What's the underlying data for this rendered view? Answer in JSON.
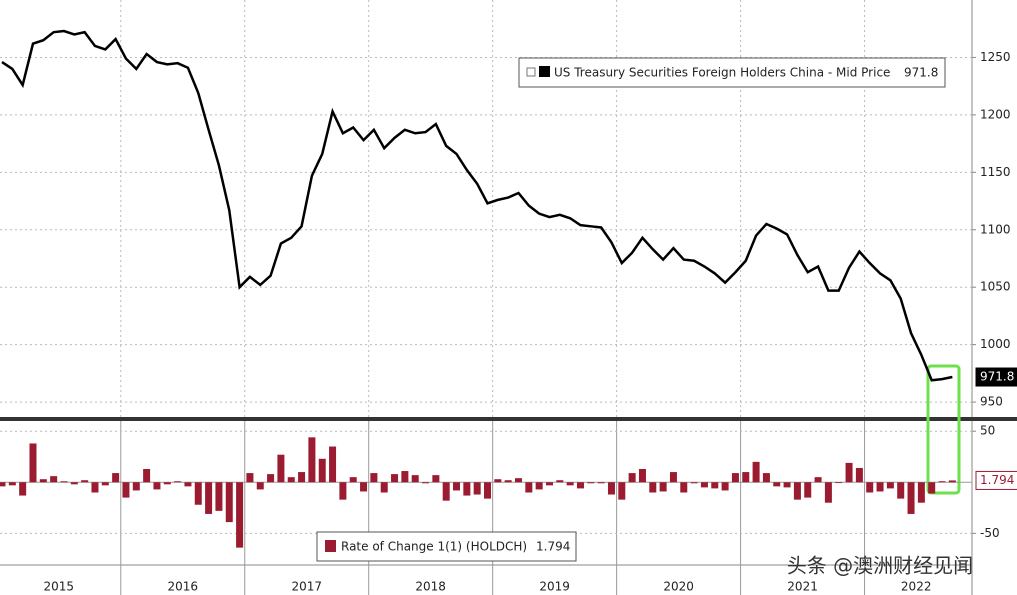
{
  "chart_data": [
    {
      "type": "line",
      "series": [
        {
          "name": "US Treasury Securities Foreign Holders China - Mid Price",
          "color": "#000000",
          "values": [
            1246,
            1240,
            1226,
            1262,
            1265,
            1272,
            1273,
            1270,
            1272,
            1260,
            1257,
            1266,
            1249,
            1240,
            1253,
            1246,
            1244,
            1245,
            1241,
            1219,
            1187,
            1156,
            1117,
            1050,
            1059,
            1052,
            1060,
            1088,
            1093,
            1103,
            1147,
            1166,
            1203,
            1184,
            1189,
            1178,
            1187,
            1171,
            1180,
            1187,
            1184,
            1185,
            1192,
            1173,
            1166,
            1152,
            1140,
            1123,
            1126,
            1128,
            1132,
            1121,
            1114,
            1111,
            1113,
            1110,
            1104,
            1103,
            1102,
            1089,
            1071,
            1080,
            1093,
            1083,
            1074,
            1084,
            1074,
            1073,
            1068,
            1062,
            1054,
            1063,
            1073,
            1095,
            1105,
            1101,
            1096,
            1078,
            1063,
            1068,
            1047,
            1047,
            1067,
            1081,
            1071,
            1062,
            1056,
            1040,
            1010,
            991,
            969,
            970,
            971.8
          ]
        }
      ],
      "ylim": [
        937,
        1300
      ],
      "yticks": [
        950,
        1000,
        1050,
        1100,
        1150,
        1200,
        1250
      ],
      "grid": true
    },
    {
      "type": "bar",
      "categories": [
        null,
        null,
        null,
        null,
        null,
        null,
        "2015",
        null,
        null,
        null,
        null,
        null,
        null,
        null,
        null,
        null,
        null,
        null,
        "2016",
        null,
        null,
        null,
        null,
        null,
        null,
        null,
        null,
        null,
        null,
        null,
        "2017",
        null,
        null,
        null,
        null,
        null,
        null,
        null,
        null,
        null,
        null,
        null,
        "2018",
        null,
        null,
        null,
        null,
        null,
        null,
        null,
        null,
        null,
        null,
        null,
        "2019",
        null,
        null,
        null,
        null,
        null,
        null,
        null,
        null,
        null,
        null,
        null,
        "2020",
        null,
        null,
        null,
        null,
        null,
        null,
        null,
        null,
        null,
        null,
        null,
        "2021",
        null,
        null,
        null,
        null,
        null,
        null,
        null,
        null,
        null,
        null,
        "2022",
        null,
        null,
        null
      ],
      "series": [
        {
          "name": "Rate of Change 1(1) (HOLDCH)",
          "color": "#9b1b30",
          "values": [
            -4,
            -3,
            -13,
            38,
            3,
            6,
            1,
            -2,
            2,
            -10,
            -3,
            9,
            -15,
            -8,
            13,
            -7,
            -2,
            1,
            -4,
            -22,
            -31,
            -28,
            -39,
            -64,
            9,
            -7,
            8,
            27,
            5,
            10,
            44,
            23,
            35,
            -17,
            5,
            -9,
            9,
            -10,
            8,
            11,
            7,
            -1,
            7,
            -18,
            -8,
            -13,
            -12,
            -16,
            3,
            2,
            4,
            -10,
            -7,
            -3,
            2,
            -3,
            -6,
            -1,
            -1,
            -12,
            -17,
            9,
            13,
            -10,
            -9,
            10,
            -10,
            -1,
            -5,
            -6,
            -8,
            9,
            10,
            20,
            9,
            -4,
            -5,
            -17,
            -15,
            5,
            -20,
            0,
            19,
            14,
            -10,
            -9,
            -6,
            -16,
            -31,
            -20,
            -11,
            1,
            1.794
          ]
        }
      ],
      "ylim": [
        -81,
        60
      ],
      "yticks": [
        -50,
        50
      ],
      "grid": true
    }
  ],
  "watermark": "头条 @澳洲财经见闻"
}
